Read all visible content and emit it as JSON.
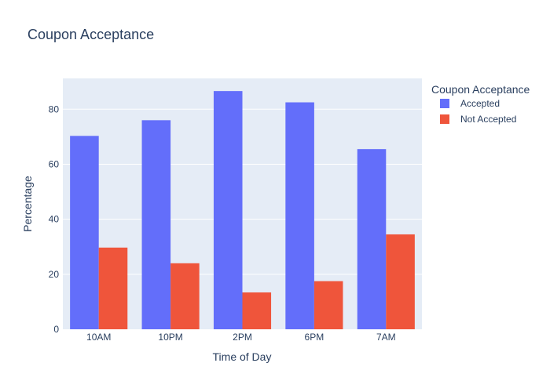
{
  "chart_data": {
    "type": "bar",
    "title": "Coupon Acceptance",
    "xlabel": "Time of Day",
    "ylabel": "Percentage",
    "categories": [
      "10AM",
      "10PM",
      "2PM",
      "6PM",
      "7AM"
    ],
    "series": [
      {
        "name": "Accepted",
        "color": "#636efa",
        "values": [
          70.3,
          76.0,
          86.6,
          82.5,
          65.5
        ]
      },
      {
        "name": "Not Accepted",
        "color": "#ef553b",
        "values": [
          29.7,
          24.0,
          13.4,
          17.5,
          34.5
        ]
      }
    ],
    "ylim": [
      0,
      91.2
    ],
    "yticks": [
      0,
      20,
      40,
      60,
      80
    ],
    "legend_title": "Coupon Acceptance",
    "legend_position": "top-right",
    "grid": true,
    "plot_background": "#e5ecf6"
  }
}
